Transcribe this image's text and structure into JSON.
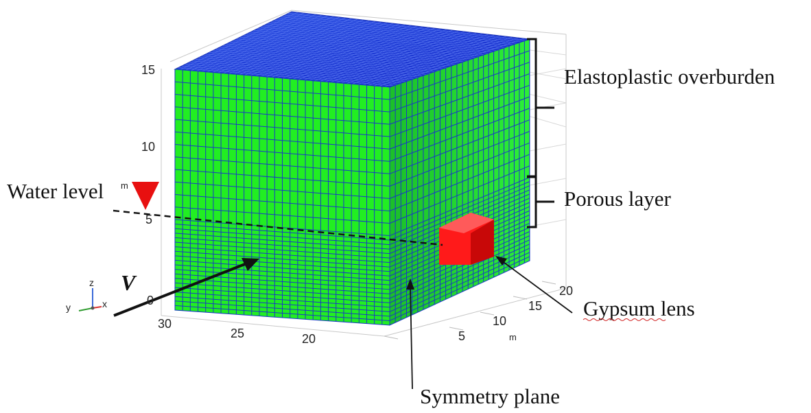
{
  "annotations": {
    "overburden": "Elastoplastic overburden",
    "porous": "Porous layer",
    "water_level": "Water level",
    "gypsum": "Gypsum lens",
    "symmetry": "Symmetry plane",
    "velocity": "V"
  },
  "axes": {
    "z_ticks": [
      "15",
      "10",
      "5",
      "0"
    ],
    "z_unit": "m",
    "front_ticks": [
      "30",
      "25",
      "20"
    ],
    "side_ticks": [
      "20",
      "15",
      "10",
      "5"
    ],
    "side_unit": "m"
  },
  "triad": {
    "x": "x",
    "y": "y",
    "z": "z"
  },
  "colors": {
    "mesh_fill": "#22ee22",
    "mesh_top": "#1a3fd8",
    "mesh_lines": "#1a36c8",
    "gypsum": "#ff1a1a",
    "water_marker": "#e81010"
  }
}
